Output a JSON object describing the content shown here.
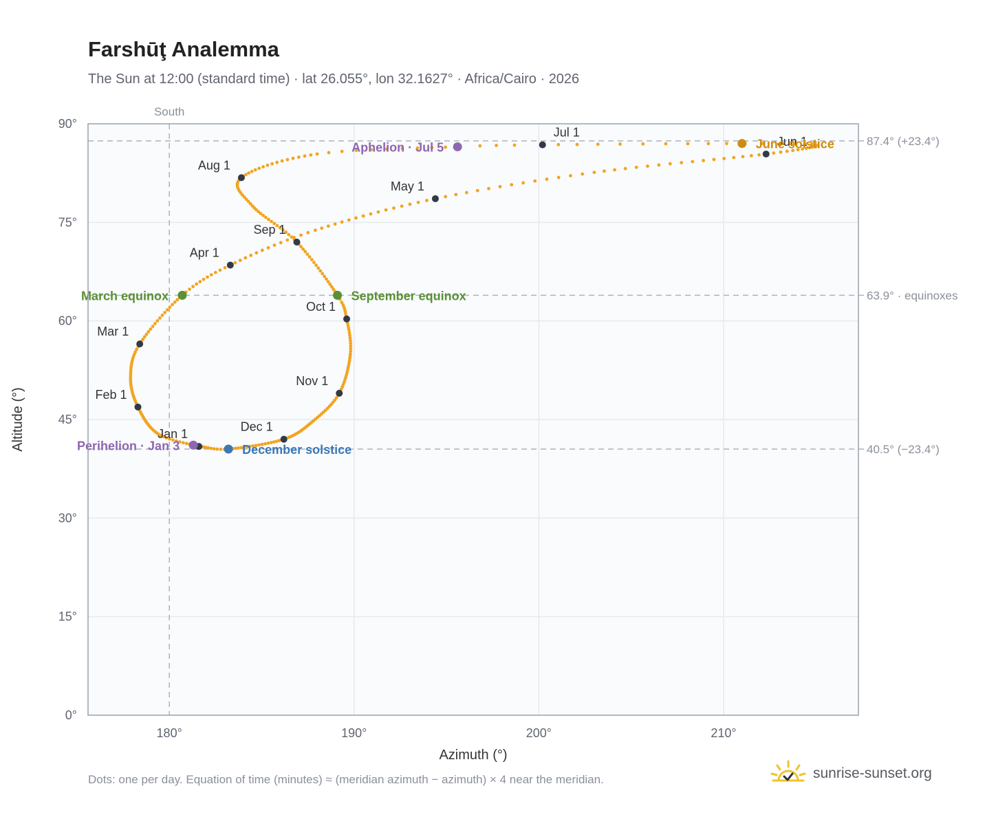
{
  "header": {
    "title": "Farshūţ Analemma",
    "subtitle": "The Sun at 12:00 (standard time) · lat 26.055°, lon 32.1627° · Africa/Cairo · 2026"
  },
  "footer": {
    "note": "Dots: one per day. Equation of time (minutes) ≈ (meridian azimuth − azimuth) × 4 near the meridian.",
    "brand": "sunrise-sunset.org"
  },
  "colors": {
    "curve": "#f2a421",
    "month_dot": "#333a45",
    "equinox": "#5a8f35",
    "june_solstice": "#d08c0e",
    "december_solstice": "#3b78b5",
    "aphelion_perihelion": "#8f66b0",
    "plot_bg": "#f9fbfc",
    "grid": "#e6eaee",
    "ref_line": "#aab3bc"
  },
  "chart_data": {
    "type": "scatter",
    "title": "Farshūţ Analemma",
    "xlabel": "Azimuth (°)",
    "ylabel": "Altitude (°)",
    "xlim": [
      175.6,
      217.3
    ],
    "ylim": [
      0,
      90
    ],
    "x_ticks": [
      {
        "value": 180,
        "label": "180°"
      },
      {
        "value": 190,
        "label": "190°"
      },
      {
        "value": 200,
        "label": "200°"
      },
      {
        "value": 210,
        "label": "210°"
      }
    ],
    "y_ticks": [
      {
        "value": 0,
        "label": "0°"
      },
      {
        "value": 15,
        "label": "15°"
      },
      {
        "value": 30,
        "label": "30°"
      },
      {
        "value": 45,
        "label": "45°"
      },
      {
        "value": 60,
        "label": "60°"
      },
      {
        "value": 75,
        "label": "75°"
      },
      {
        "value": 90,
        "label": "90°"
      }
    ],
    "grid": true,
    "meridian": {
      "azimuth": 180,
      "label": "South"
    },
    "reference_lines": [
      {
        "altitude": 87.4,
        "label": "87.4° (+23.4°)"
      },
      {
        "altitude": 63.9,
        "label": "63.9° · equinoxes"
      },
      {
        "altitude": 40.5,
        "label": "40.5° (−23.4°)"
      }
    ],
    "analemma_keypoints": [
      {
        "date": "01-01",
        "az": 181.6,
        "alt": 40.9
      },
      {
        "date": "01-15",
        "az": 179.4,
        "alt": 42.8
      },
      {
        "date": "02-01",
        "az": 178.3,
        "alt": 46.9
      },
      {
        "date": "02-15",
        "az": 177.9,
        "alt": 51.5
      },
      {
        "date": "03-01",
        "az": 178.4,
        "alt": 56.5
      },
      {
        "date": "03-20",
        "az": 180.7,
        "alt": 63.9
      },
      {
        "date": "04-01",
        "az": 183.3,
        "alt": 68.5
      },
      {
        "date": "04-15",
        "az": 187.9,
        "alt": 73.8
      },
      {
        "date": "05-01",
        "az": 194.4,
        "alt": 78.6
      },
      {
        "date": "05-15",
        "az": 203.0,
        "alt": 82.6
      },
      {
        "date": "06-01",
        "az": 212.3,
        "alt": 85.4
      },
      {
        "date": "06-15",
        "az": 215.0,
        "alt": 86.8
      },
      {
        "date": "06-21",
        "az": 211.0,
        "alt": 87.0
      },
      {
        "date": "07-01",
        "az": 200.2,
        "alt": 86.8
      },
      {
        "date": "07-05",
        "az": 195.6,
        "alt": 86.5
      },
      {
        "date": "07-15",
        "az": 188.0,
        "alt": 85.4
      },
      {
        "date": "08-01",
        "az": 183.9,
        "alt": 81.8
      },
      {
        "date": "08-15",
        "az": 184.5,
        "alt": 77.5
      },
      {
        "date": "09-01",
        "az": 186.9,
        "alt": 72.0
      },
      {
        "date": "09-22",
        "az": 189.1,
        "alt": 63.9
      },
      {
        "date": "10-01",
        "az": 189.6,
        "alt": 60.3
      },
      {
        "date": "10-15",
        "az": 189.8,
        "alt": 55.0
      },
      {
        "date": "11-01",
        "az": 189.2,
        "alt": 49.0
      },
      {
        "date": "11-15",
        "az": 187.8,
        "alt": 44.8
      },
      {
        "date": "12-01",
        "az": 186.2,
        "alt": 42.0
      },
      {
        "date": "12-21",
        "az": 183.2,
        "alt": 40.5
      },
      {
        "date": "12-31",
        "az": 181.7,
        "alt": 40.9
      }
    ],
    "month_markers": [
      {
        "label": "Jan 1",
        "az": 181.6,
        "alt": 40.9,
        "anchor": "end"
      },
      {
        "label": "Feb 1",
        "az": 178.3,
        "alt": 46.9,
        "anchor": "end"
      },
      {
        "label": "Mar 1",
        "az": 178.4,
        "alt": 56.5,
        "anchor": "end"
      },
      {
        "label": "Apr 1",
        "az": 183.3,
        "alt": 68.5,
        "anchor": "end"
      },
      {
        "label": "May 1",
        "az": 194.4,
        "alt": 78.6,
        "anchor": "end"
      },
      {
        "label": "Jun 1",
        "az": 212.3,
        "alt": 85.4,
        "anchor": "start"
      },
      {
        "label": "Jul 1",
        "az": 200.2,
        "alt": 86.8,
        "anchor": "start"
      },
      {
        "label": "Aug 1",
        "az": 183.9,
        "alt": 81.8,
        "anchor": "end"
      },
      {
        "label": "Sep 1",
        "az": 186.9,
        "alt": 72.0,
        "anchor": "end"
      },
      {
        "label": "Oct 1",
        "az": 189.6,
        "alt": 60.3,
        "anchor": "end"
      },
      {
        "label": "Nov 1",
        "az": 189.2,
        "alt": 49.0,
        "anchor": "end"
      },
      {
        "label": "Dec 1",
        "az": 186.2,
        "alt": 42.0,
        "anchor": "end"
      }
    ],
    "events": [
      {
        "label": "March equinox",
        "az": 180.7,
        "alt": 63.9,
        "color": "#5a8f35",
        "anchor": "end"
      },
      {
        "label": "September equinox",
        "az": 189.1,
        "alt": 63.9,
        "color": "#5a8f35",
        "anchor": "start"
      },
      {
        "label": "June solstice",
        "az": 211.0,
        "alt": 87.0,
        "color": "#d08c0e",
        "anchor": "start"
      },
      {
        "label": "December solstice",
        "az": 183.2,
        "alt": 40.5,
        "color": "#3b78b5",
        "anchor": "start"
      },
      {
        "label": "Aphelion · Jul 5",
        "az": 195.6,
        "alt": 86.5,
        "color": "#8f66b0",
        "anchor": "end"
      },
      {
        "label": "Perihelion · Jan 3",
        "az": 181.3,
        "alt": 41.1,
        "color": "#8f66b0",
        "anchor": "end"
      }
    ]
  }
}
